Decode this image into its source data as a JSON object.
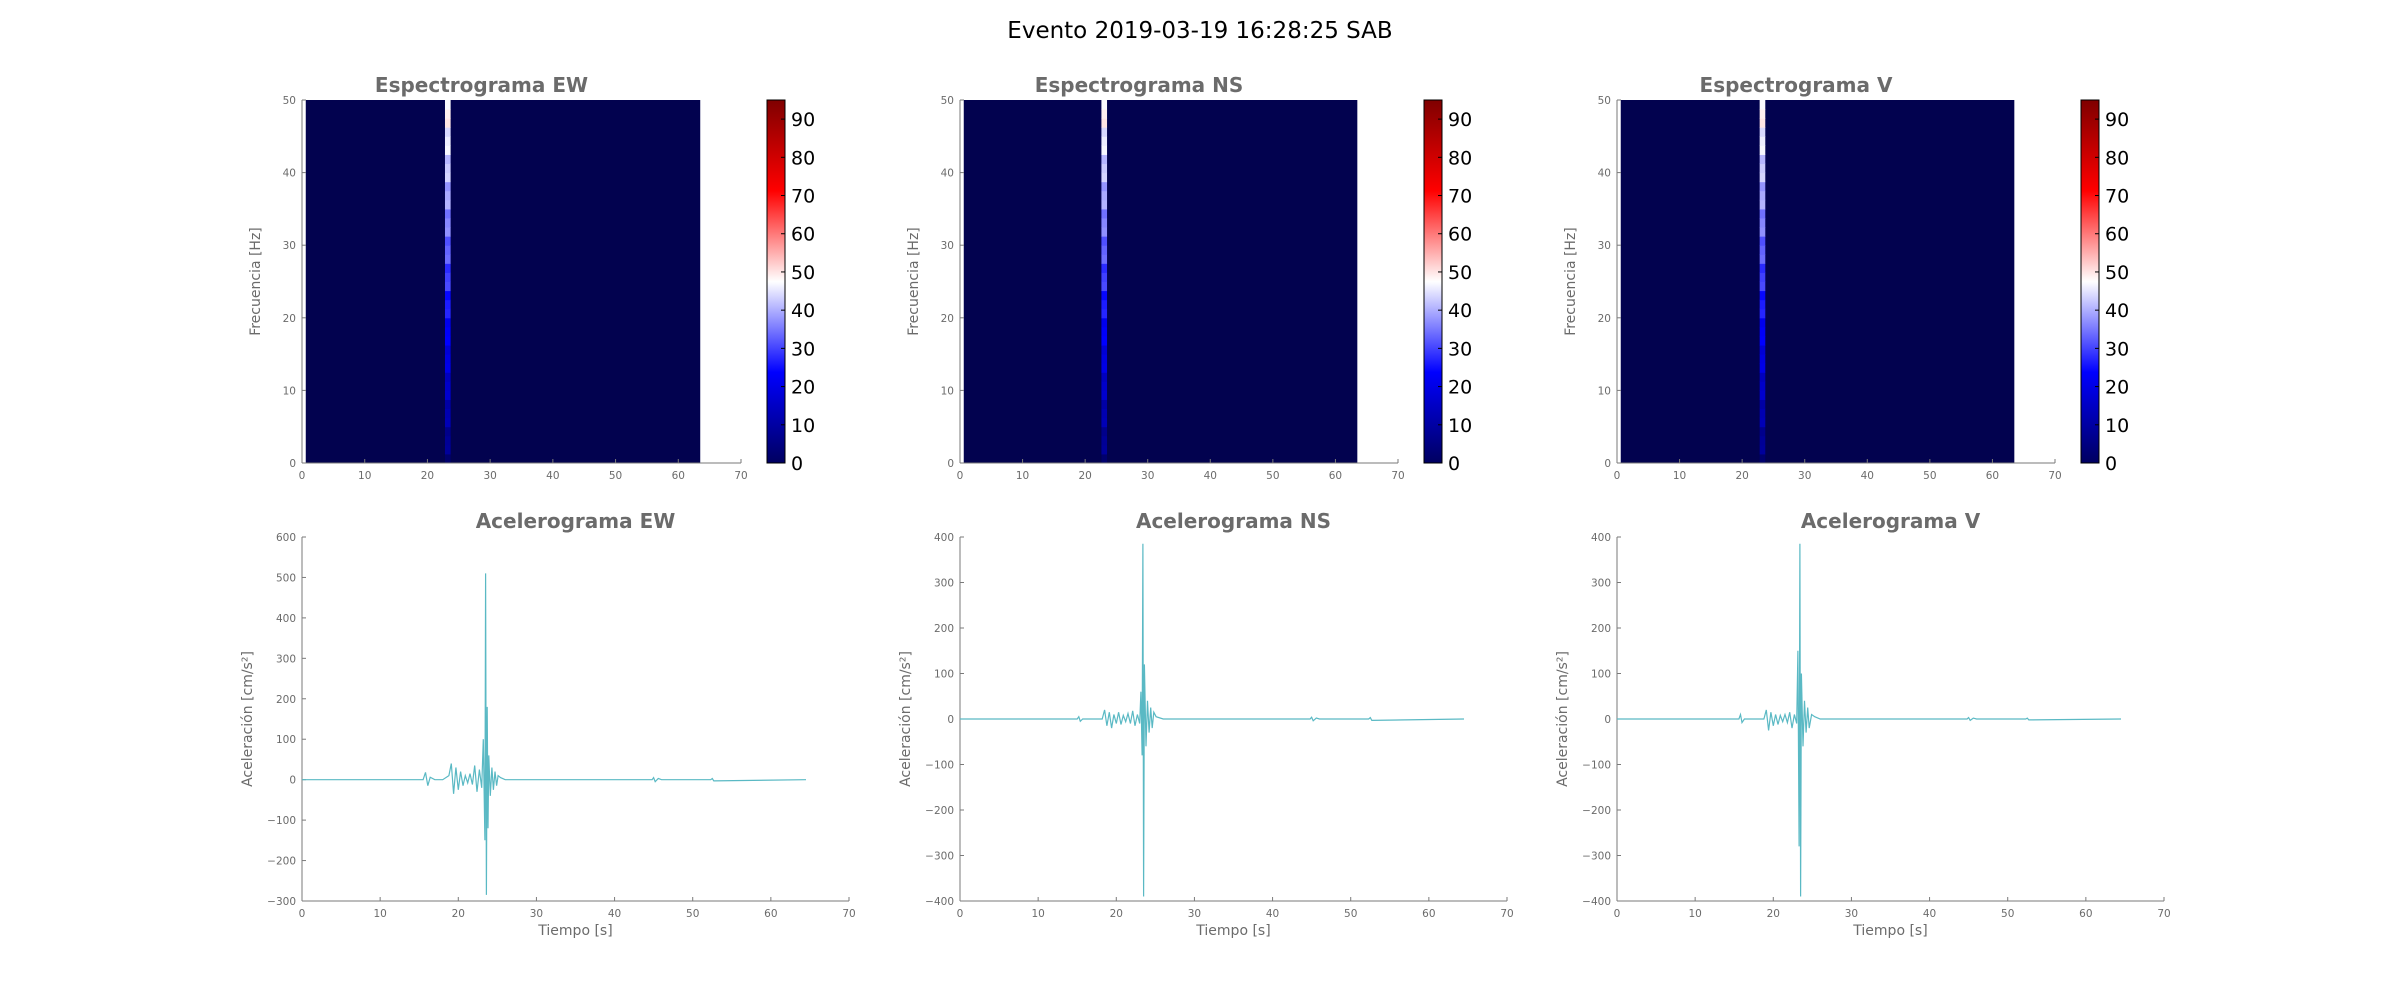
{
  "figure": {
    "title": "Evento 2019-03-19 16:28:25 SAB"
  },
  "colors": {
    "spectrogram_bg": "#02024f",
    "signal": "#5ab9c4",
    "axis": "#7a7a7a",
    "colormap": [
      "#000060",
      "#0000ff",
      "#ffffff",
      "#ff0000",
      "#7f0000"
    ]
  },
  "chart_data": [
    {
      "id": "spec-ew",
      "type": "heatmap",
      "title": "Espectrograma EW",
      "ylabel": "Frecuencia [Hz]",
      "xlabel": "",
      "xlim": [
        0,
        70
      ],
      "ylim": [
        0,
        50
      ],
      "xticks": [
        0,
        10,
        20,
        30,
        40,
        50,
        60,
        70
      ],
      "yticks": [
        0,
        10,
        20,
        30,
        40,
        50
      ],
      "data_extent_x": [
        0.6,
        63.5
      ],
      "event_band": {
        "x_start": 22.8,
        "x_end": 23.7,
        "color_value_bottom": 5,
        "color_value_top": 50
      },
      "colorbar": {
        "range": [
          0,
          95
        ],
        "ticks": [
          0,
          10,
          20,
          30,
          40,
          50,
          60,
          70,
          80,
          90
        ]
      }
    },
    {
      "id": "spec-ns",
      "type": "heatmap",
      "title": "Espectrograma NS",
      "ylabel": "Frecuencia [Hz]",
      "xlabel": "",
      "xlim": [
        0,
        70
      ],
      "ylim": [
        0,
        50
      ],
      "xticks": [
        0,
        10,
        20,
        30,
        40,
        50,
        60,
        70
      ],
      "yticks": [
        0,
        10,
        20,
        30,
        40,
        50
      ],
      "data_extent_x": [
        0.6,
        63.5
      ],
      "event_band": {
        "x_start": 22.6,
        "x_end": 23.5,
        "color_value_bottom": 5,
        "color_value_top": 50
      },
      "colorbar": {
        "range": [
          0,
          95
        ],
        "ticks": [
          0,
          10,
          20,
          30,
          40,
          50,
          60,
          70,
          80,
          90
        ]
      }
    },
    {
      "id": "spec-v",
      "type": "heatmap",
      "title": "Espectrograma V",
      "ylabel": "Frecuencia [Hz]",
      "xlabel": "",
      "xlim": [
        0,
        70
      ],
      "ylim": [
        0,
        50
      ],
      "xticks": [
        0,
        10,
        20,
        30,
        40,
        50,
        60,
        70
      ],
      "yticks": [
        0,
        10,
        20,
        30,
        40,
        50
      ],
      "data_extent_x": [
        0.6,
        63.5
      ],
      "event_band": {
        "x_start": 22.8,
        "x_end": 23.7,
        "color_value_bottom": 5,
        "color_value_top": 50
      },
      "colorbar": {
        "range": [
          0,
          95
        ],
        "ticks": [
          0,
          10,
          20,
          30,
          40,
          50,
          60,
          70,
          80,
          90
        ]
      }
    },
    {
      "id": "acc-ew",
      "type": "line",
      "title": "Acelerograma EW",
      "xlabel": "Tiempo [s]",
      "ylabel": "Aceleración [cm/s²]",
      "xlim": [
        0,
        70
      ],
      "ylim": [
        -300,
        600
      ],
      "xticks": [
        0,
        10,
        20,
        30,
        40,
        50,
        60,
        70
      ],
      "yticks": [
        -300,
        -200,
        -100,
        0,
        100,
        200,
        300,
        400,
        500,
        600
      ],
      "ytick_labels": [
        "−300",
        "−200",
        "−100",
        "0",
        "100",
        "200",
        "300",
        "400",
        "500",
        "600"
      ],
      "x": [
        0,
        15.5,
        15.8,
        16.1,
        16.4,
        17.0,
        18.0,
        18.8,
        19.1,
        19.4,
        19.7,
        20.0,
        20.3,
        20.6,
        20.9,
        21.2,
        21.5,
        21.8,
        22.1,
        22.4,
        22.7,
        23.0,
        23.2,
        23.4,
        23.5,
        23.6,
        23.7,
        23.8,
        23.9,
        24.1,
        24.3,
        24.5,
        24.7,
        24.9,
        25.1,
        25.4,
        26.0,
        30.0,
        44.8,
        45.0,
        45.2,
        45.6,
        46.0,
        52.3,
        52.5,
        52.7,
        64.5
      ],
      "y": [
        0,
        0,
        18,
        -15,
        6,
        0,
        0,
        10,
        40,
        -35,
        30,
        -25,
        20,
        -15,
        10,
        -8,
        15,
        -12,
        35,
        -30,
        25,
        -20,
        100,
        -150,
        510,
        -285,
        180,
        -120,
        60,
        -40,
        30,
        -25,
        20,
        -15,
        10,
        5,
        0,
        0,
        0,
        5,
        -5,
        3,
        0,
        0,
        3,
        -3,
        0
      ]
    },
    {
      "id": "acc-ns",
      "type": "line",
      "title": "Acelerograma NS",
      "xlabel": "Tiempo [s]",
      "ylabel": "Aceleración [cm/s²]",
      "xlim": [
        0,
        70
      ],
      "ylim": [
        -400,
        400
      ],
      "xticks": [
        0,
        10,
        20,
        30,
        40,
        50,
        60,
        70
      ],
      "yticks": [
        -400,
        -300,
        -200,
        -100,
        0,
        100,
        200,
        300,
        400
      ],
      "ytick_labels": [
        "−400",
        "−300",
        "−200",
        "−100",
        "0",
        "100",
        "200",
        "300",
        "400"
      ],
      "x": [
        0,
        15.0,
        15.2,
        15.4,
        15.7,
        18.2,
        18.5,
        18.8,
        19.1,
        19.4,
        19.7,
        20.0,
        20.3,
        20.6,
        20.9,
        21.2,
        21.5,
        21.8,
        22.1,
        22.4,
        22.7,
        23.0,
        23.15,
        23.3,
        23.4,
        23.5,
        23.6,
        23.8,
        24.0,
        24.2,
        24.4,
        24.6,
        24.8,
        25.1,
        26.0,
        44.8,
        45.0,
        45.2,
        45.6,
        46.0,
        52.3,
        52.5,
        52.7,
        64.5
      ],
      "y": [
        0,
        0,
        5,
        -5,
        0,
        0,
        20,
        -15,
        15,
        -20,
        10,
        -10,
        15,
        -12,
        8,
        -6,
        12,
        -10,
        18,
        -15,
        10,
        -10,
        60,
        -80,
        385,
        -390,
        120,
        -60,
        40,
        -30,
        25,
        -20,
        15,
        5,
        0,
        0,
        4,
        -4,
        2,
        0,
        0,
        3,
        -3,
        0
      ]
    },
    {
      "id": "acc-v",
      "type": "line",
      "title": "Acelerograma V",
      "xlabel": "Tiempo [s]",
      "ylabel": "Aceleración [cm/s²]",
      "xlim": [
        0,
        70
      ],
      "ylim": [
        -400,
        400
      ],
      "xticks": [
        0,
        10,
        20,
        30,
        40,
        50,
        60,
        70
      ],
      "yticks": [
        -400,
        -300,
        -200,
        -100,
        0,
        100,
        200,
        300,
        400
      ],
      "ytick_labels": [
        "−400",
        "−300",
        "−200",
        "−100",
        "0",
        "100",
        "200",
        "300",
        "400"
      ],
      "x": [
        0,
        15.6,
        15.8,
        16.0,
        16.3,
        18.8,
        19.1,
        19.4,
        19.7,
        20.0,
        20.3,
        20.6,
        20.9,
        21.2,
        21.5,
        21.8,
        22.1,
        22.4,
        22.7,
        23.0,
        23.15,
        23.3,
        23.4,
        23.5,
        23.6,
        23.8,
        24.0,
        24.2,
        24.4,
        24.6,
        24.9,
        25.3,
        26.0,
        44.8,
        45.0,
        45.2,
        45.6,
        46.0,
        52.3,
        52.5,
        52.7,
        64.5
      ],
      "y": [
        0,
        0,
        10,
        -8,
        0,
        0,
        20,
        -25,
        15,
        -15,
        10,
        -12,
        8,
        -6,
        10,
        -8,
        15,
        -20,
        10,
        -10,
        150,
        -280,
        385,
        -390,
        100,
        -60,
        40,
        -30,
        25,
        -20,
        10,
        5,
        0,
        0,
        3,
        -3,
        2,
        0,
        0,
        2,
        -2,
        0
      ]
    }
  ]
}
